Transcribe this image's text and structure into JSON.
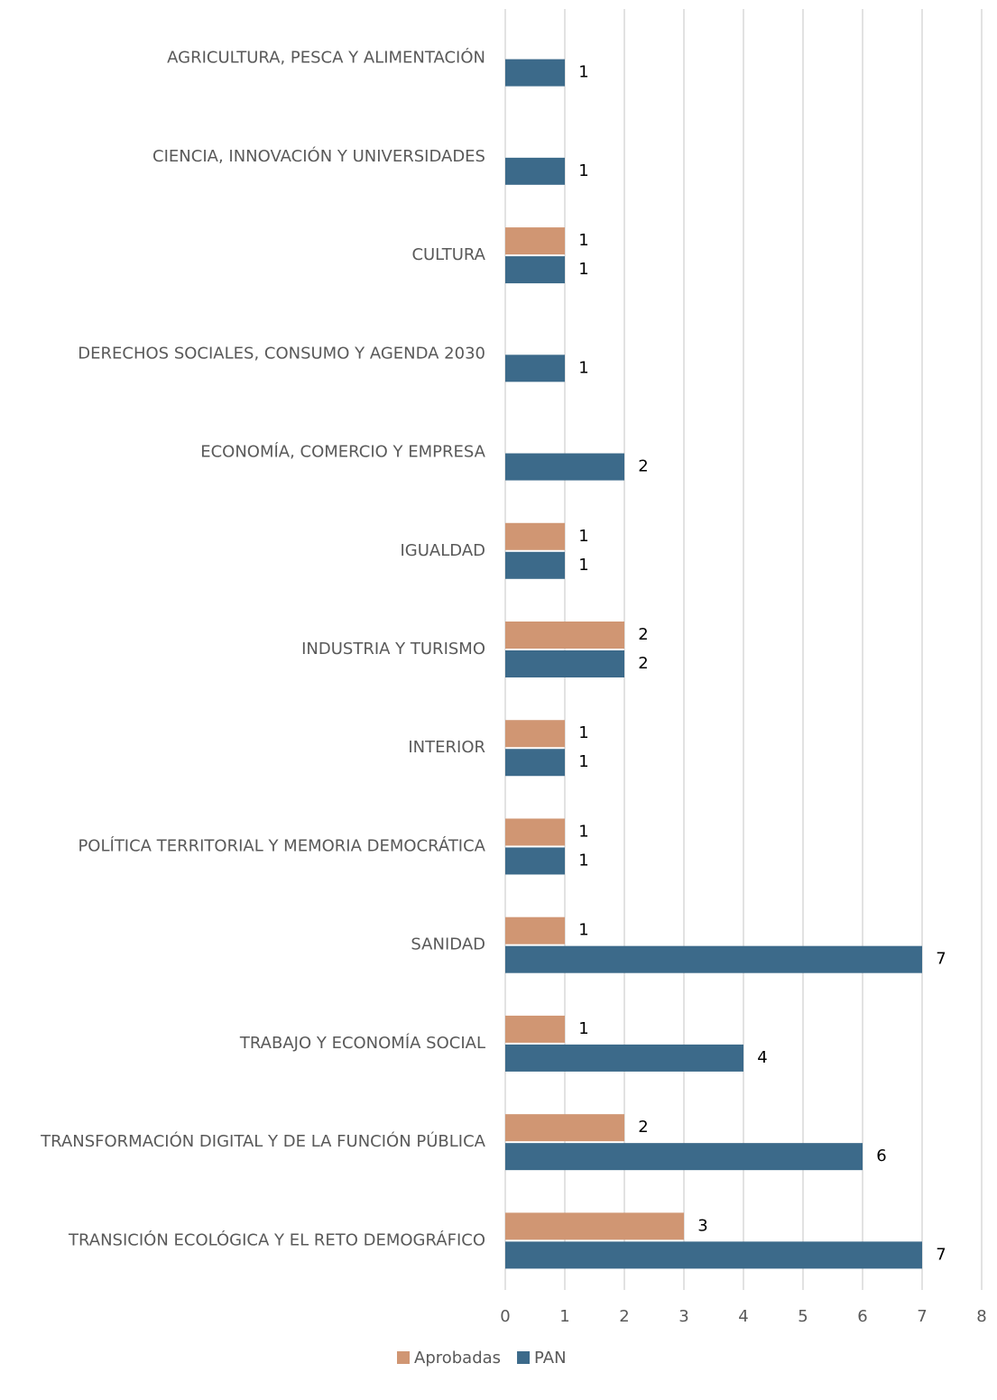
{
  "chart_data": {
    "type": "hbar",
    "categories": [
      "AGRICULTURA, PESCA Y ALIMENTACIÓN",
      "CIENCIA, INNOVACIÓN Y UNIVERSIDADES",
      "CULTURA",
      "DERECHOS SOCIALES, CONSUMO Y AGENDA 2030",
      "ECONOMÍA, COMERCIO Y EMPRESA",
      "IGUALDAD",
      "INDUSTRIA Y TURISMO",
      "INTERIOR",
      "POLÍTICA TERRITORIAL Y MEMORIA DEMOCRÁTICA",
      "SANIDAD",
      "TRABAJO Y ECONOMÍA SOCIAL",
      "TRANSFORMACIÓN DIGITAL Y DE LA FUNCIÓN PÚBLICA",
      "TRANSICIÓN ECOLÓGICA Y EL RETO DEMOGRÁFICO"
    ],
    "series": [
      {
        "name": "Aprobadas",
        "color": "#d09673",
        "values": [
          null,
          null,
          1,
          null,
          null,
          1,
          2,
          1,
          1,
          1,
          1,
          2,
          3
        ]
      },
      {
        "name": "PAN",
        "color": "#3c6a8a",
        "values": [
          1,
          1,
          1,
          1,
          2,
          1,
          2,
          1,
          1,
          7,
          4,
          6,
          7
        ]
      }
    ],
    "xlim": [
      0,
      8
    ],
    "xticks": [
      0,
      1,
      2,
      3,
      4,
      5,
      6,
      7,
      8
    ],
    "grid": true,
    "legend": "bottom"
  }
}
